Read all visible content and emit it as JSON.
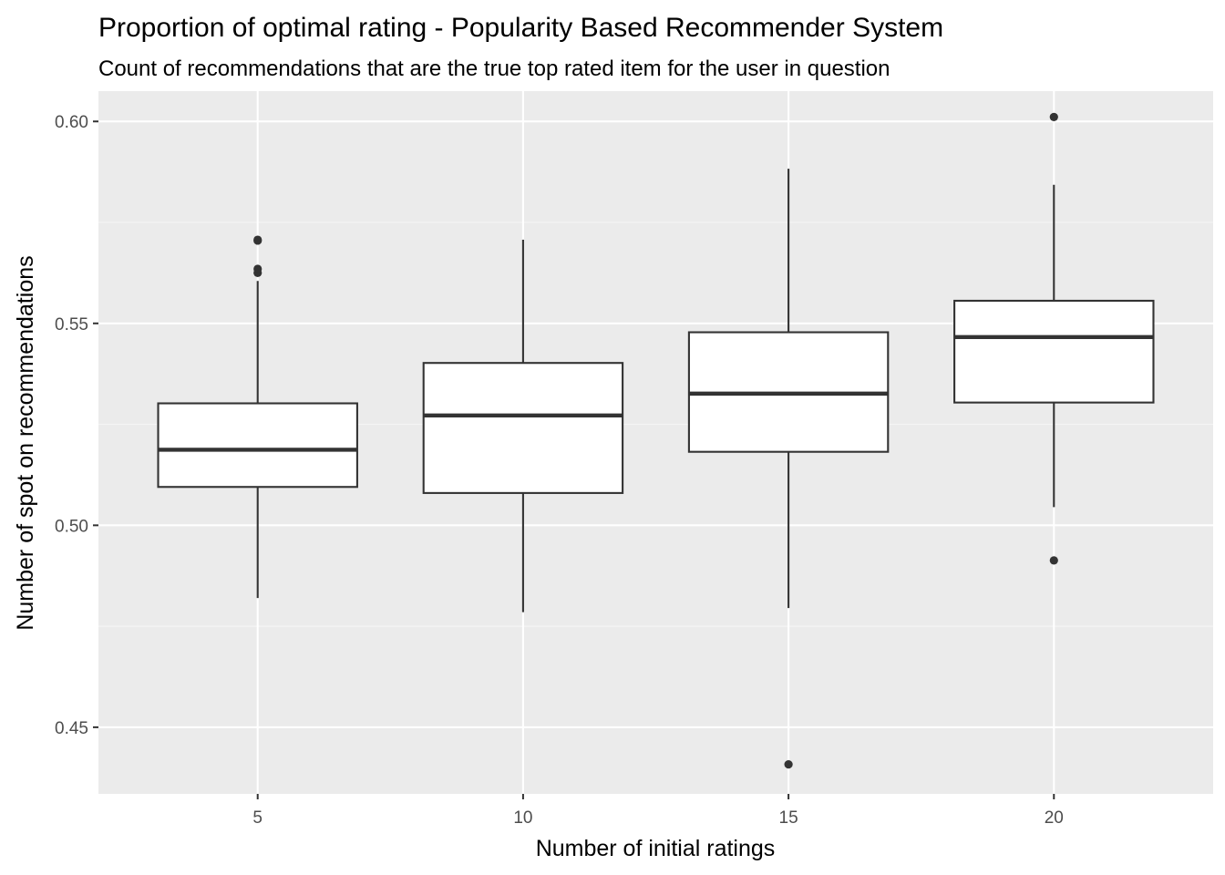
{
  "chart_data": {
    "type": "boxplot",
    "title": "Proportion of optimal rating - Popularity Based Recommender System",
    "subtitle": "Count of recommendations that are the true top rated item for the user in question",
    "xlabel": "Number of initial ratings",
    "ylabel": "Number of spot on recommendations",
    "categories": [
      "5",
      "10",
      "15",
      "20"
    ],
    "ylim": [
      0.4335,
      0.6075
    ],
    "y_ticks": [
      0.45,
      0.5,
      0.55,
      0.6
    ],
    "y_tick_labels": [
      "0.45",
      "0.50",
      "0.55",
      "0.60"
    ],
    "grid": true,
    "legend": "none",
    "boxes": [
      {
        "category": "5",
        "whisker_low": 0.482,
        "q1": 0.5095,
        "median": 0.5187,
        "q3": 0.5302,
        "whisker_high": 0.5605,
        "outliers": [
          0.5625,
          0.5635,
          0.5705,
          0.5707
        ]
      },
      {
        "category": "10",
        "whisker_low": 0.4785,
        "q1": 0.508,
        "median": 0.5272,
        "q3": 0.5402,
        "whisker_high": 0.5707,
        "outliers": []
      },
      {
        "category": "15",
        "whisker_low": 0.4795,
        "q1": 0.5182,
        "median": 0.5326,
        "q3": 0.5478,
        "whisker_high": 0.5883,
        "outliers": [
          0.4408
        ]
      },
      {
        "category": "20",
        "whisker_low": 0.5045,
        "q1": 0.5304,
        "median": 0.5466,
        "q3": 0.5556,
        "whisker_high": 0.5843,
        "outliers": [
          0.6011,
          0.4913
        ]
      }
    ],
    "colors": {
      "panel": "#ebebeb",
      "grid_major": "#ffffff",
      "grid_minor": "#f5f5f5",
      "box_fill": "#ffffff",
      "box_line": "#333333"
    }
  }
}
